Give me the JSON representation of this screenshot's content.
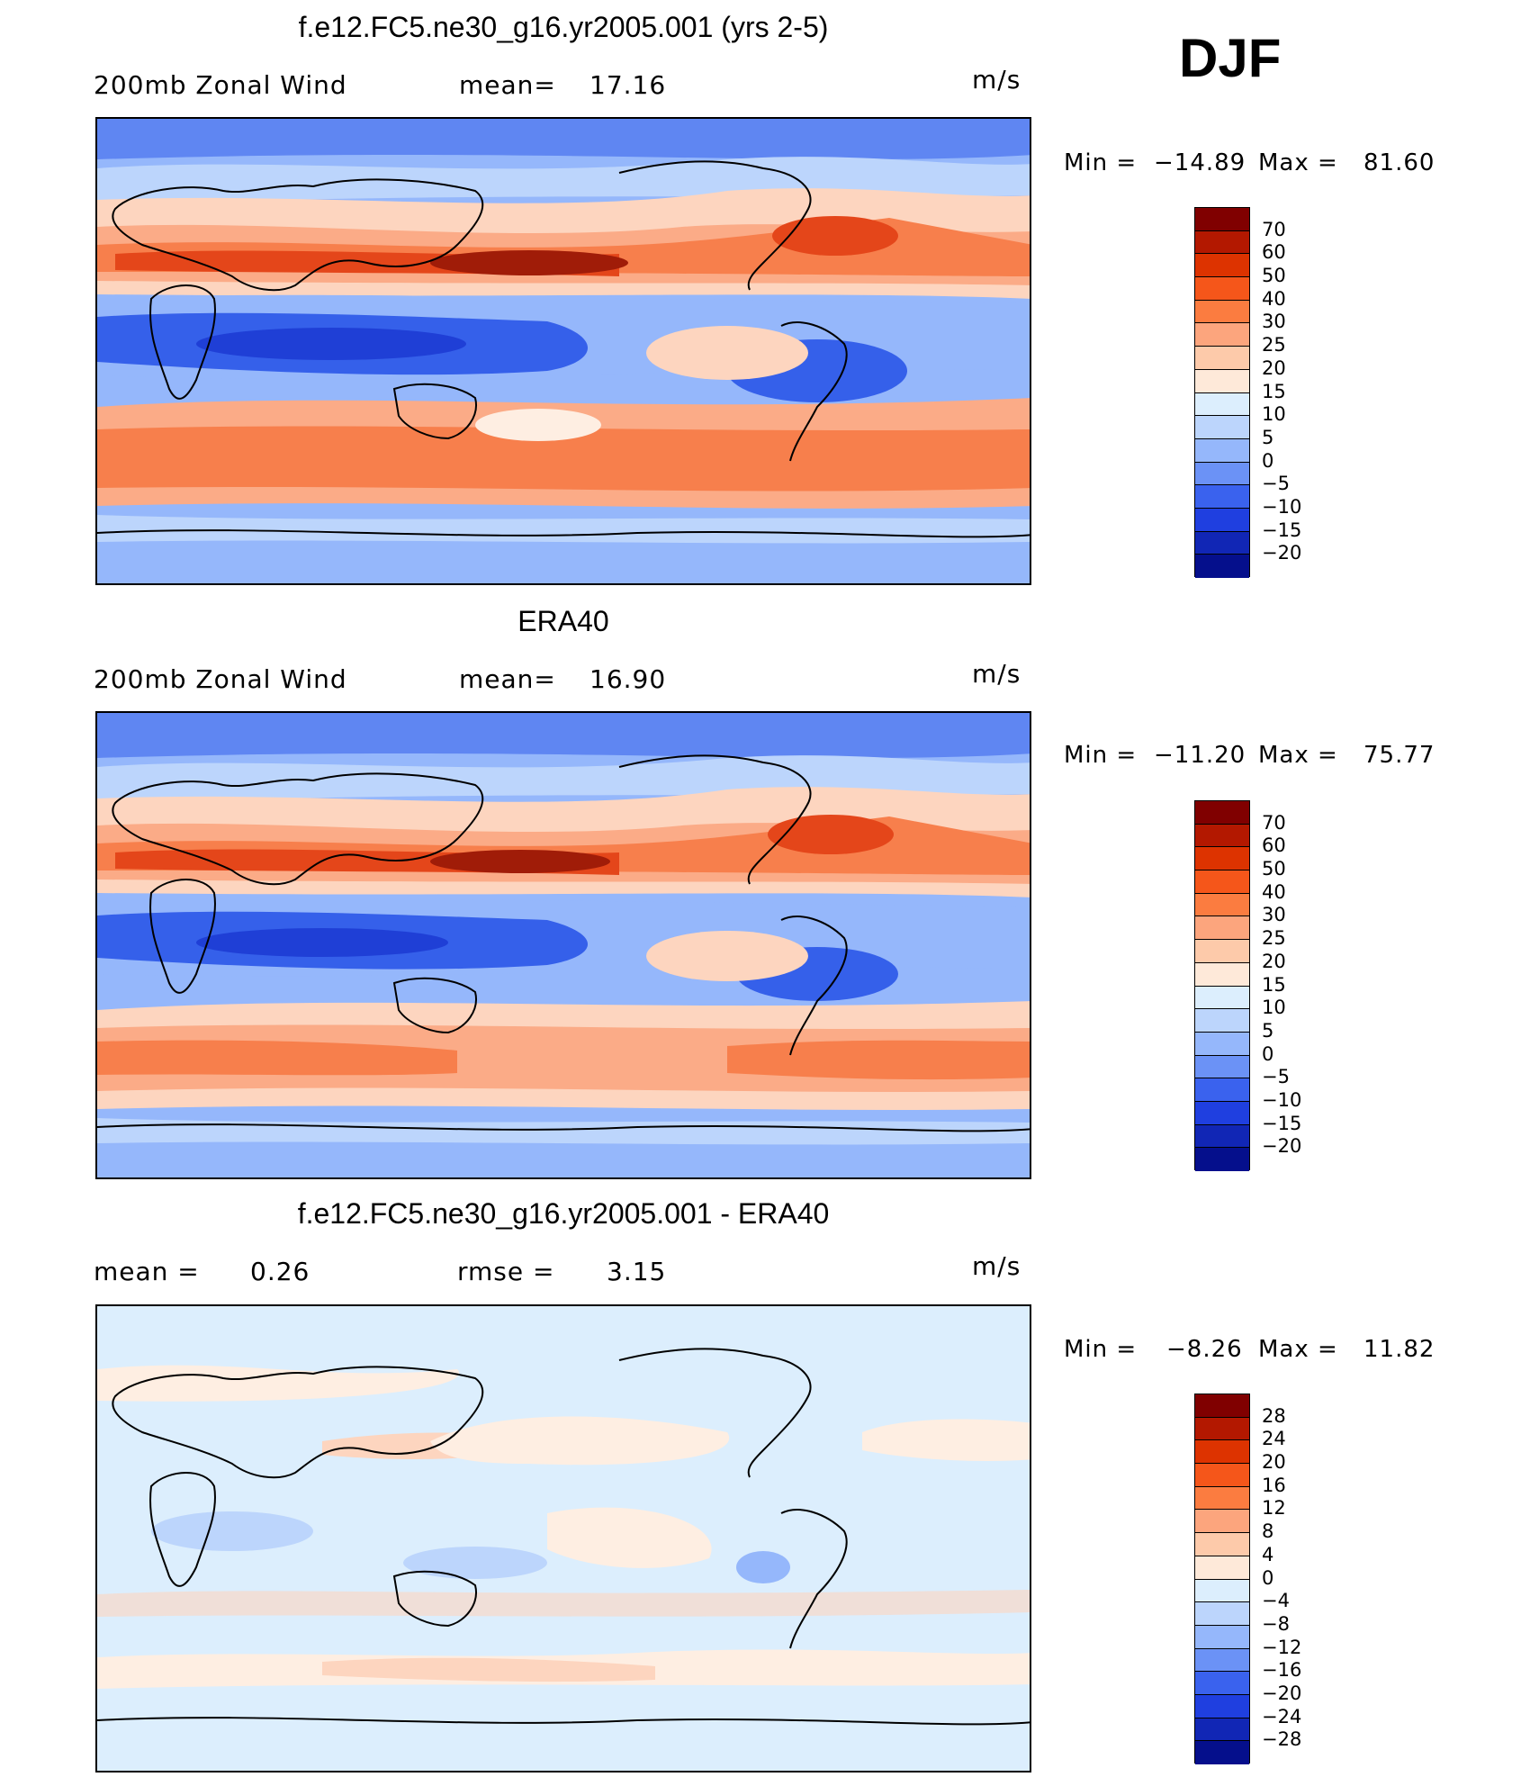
{
  "season": "DJF",
  "units": "m/s",
  "panels": [
    {
      "title": "f.e12.FC5.ne30_g16.yr2005.001 (yrs 2-5)",
      "left_label": "200mb Zonal Wind",
      "stat_label": "mean=",
      "stat_value": "17.16",
      "min_label": "Min =",
      "min_value": "−14.89",
      "max_label": "Max =",
      "max_value": "81.60"
    },
    {
      "title": "ERA40",
      "left_label": "200mb Zonal Wind",
      "stat_label": "mean=",
      "stat_value": "16.90",
      "min_label": "Min =",
      "min_value": "−11.20",
      "max_label": "Max =",
      "max_value": "75.77"
    },
    {
      "title": "f.e12.FC5.ne30_g16.yr2005.001 - ERA40",
      "left_label": "mean =",
      "left_value": "0.26",
      "stat_label": "rmse =",
      "stat_value": "3.15",
      "min_label": "Min =",
      "min_value": "−8.26",
      "max_label": "Max =",
      "max_value": "11.82"
    }
  ],
  "colorbar_abs": {
    "ticks": [
      "70",
      "60",
      "50",
      "40",
      "30",
      "25",
      "20",
      "15",
      "10",
      "5",
      "0",
      "−5",
      "−10",
      "−15",
      "−20"
    ],
    "colors": [
      "#800000",
      "#b31800",
      "#dd3300",
      "#f5561a",
      "#fb7c40",
      "#fca57d",
      "#fdcaaa",
      "#fee9d9",
      "#dceefd",
      "#bcd5fc",
      "#95b7fb",
      "#6b92f6",
      "#3a62ee",
      "#1f3fe0",
      "#1126b5",
      "#050f8c"
    ]
  },
  "colorbar_diff": {
    "ticks": [
      "28",
      "24",
      "20",
      "16",
      "12",
      "8",
      "4",
      "0",
      "−4",
      "−8",
      "−12",
      "−16",
      "−20",
      "−24",
      "−28"
    ],
    "colors": [
      "#800000",
      "#b31800",
      "#dd3300",
      "#f5561a",
      "#fb7c40",
      "#fca57d",
      "#fdcaaa",
      "#fee9d9",
      "#dceefd",
      "#bcd5fc",
      "#95b7fb",
      "#6b92f6",
      "#3a62ee",
      "#1f3fe0",
      "#1126b5",
      "#050f8c"
    ]
  },
  "palette": {
    "red_dark": "#a01c08",
    "red": "#e4461a",
    "orange": "#f77f4c",
    "salmon": "#fbab87",
    "peach": "#fdd5bf",
    "cream": "#feeee2",
    "ice": "#dceefd",
    "sky": "#bcd5fc",
    "blue_light": "#95b7fb",
    "blue": "#5f86f2",
    "blue_mid": "#3560ea",
    "blue_dark": "#1f3fd6"
  }
}
